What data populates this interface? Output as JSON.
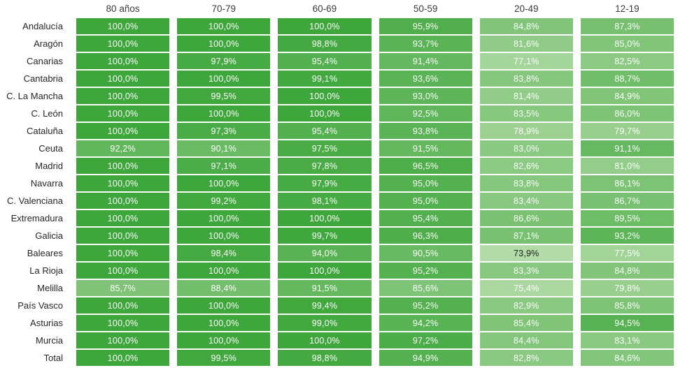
{
  "chart_data": {
    "type": "heatmap",
    "title": "",
    "columns": [
      "80 años",
      "70-79",
      "60-69",
      "50-59",
      "20-49",
      "12-19"
    ],
    "rows": [
      "Andalucía",
      "Aragón",
      "Canarias",
      "Cantabria",
      "C. La Mancha",
      "C. León",
      "Cataluña",
      "Ceuta",
      "Madrid",
      "Navarra",
      "C. Valenciana",
      "Extremadura",
      "Galicia",
      "Baleares",
      "La Rioja",
      "Melilla",
      "País Vasco",
      "Asturias",
      "Murcia",
      "Total"
    ],
    "values": [
      [
        100.0,
        100.0,
        100.0,
        95.9,
        84.8,
        87.3
      ],
      [
        100.0,
        100.0,
        98.8,
        93.7,
        81.6,
        85.0
      ],
      [
        100.0,
        97.9,
        95.4,
        91.4,
        77.1,
        82.5
      ],
      [
        100.0,
        100.0,
        99.1,
        93.6,
        83.8,
        88.7
      ],
      [
        100.0,
        99.5,
        100.0,
        93.0,
        81.4,
        84.9
      ],
      [
        100.0,
        100.0,
        100.0,
        92.5,
        83.5,
        86.0
      ],
      [
        100.0,
        97.3,
        95.4,
        93.8,
        78.9,
        79.7
      ],
      [
        92.2,
        90.1,
        97.5,
        91.5,
        83.0,
        91.1
      ],
      [
        100.0,
        97.1,
        97.8,
        96.5,
        82.6,
        81.0
      ],
      [
        100.0,
        100.0,
        97.9,
        95.0,
        83.8,
        86.1
      ],
      [
        100.0,
        99.2,
        98.1,
        95.0,
        83.4,
        86.7
      ],
      [
        100.0,
        100.0,
        100.0,
        95.4,
        86.6,
        89.5
      ],
      [
        100.0,
        100.0,
        99.7,
        96.3,
        87.1,
        93.2
      ],
      [
        100.0,
        98.4,
        94.0,
        90.5,
        73.9,
        77.5
      ],
      [
        100.0,
        100.0,
        100.0,
        95.2,
        83.3,
        84.8
      ],
      [
        85.7,
        88.4,
        91.5,
        85.6,
        75.4,
        79.8
      ],
      [
        100.0,
        100.0,
        99.4,
        95.2,
        82.9,
        85.8
      ],
      [
        100.0,
        100.0,
        99.0,
        94.2,
        85.4,
        94.5
      ],
      [
        100.0,
        100.0,
        100.0,
        97.2,
        84.4,
        83.1
      ],
      [
        100.0,
        99.5,
        98.8,
        94.9,
        82.8,
        84.6
      ]
    ],
    "value_suffix": "%",
    "decimal_separator": ",",
    "decimals": 1,
    "legend_position": "none",
    "grid": false,
    "color_scale": {
      "min_value": 73.9,
      "max_value": 100.0,
      "min_color": "#b2dba7",
      "max_color": "#3ea73b"
    },
    "cell_text_light": "#ffffff",
    "cell_text_dark": "#1d1d1d",
    "dark_text_threshold": 74.5,
    "header_text_color": "#3a3a3a",
    "row_label_color": "#262626",
    "background_color": "#ffffff"
  }
}
